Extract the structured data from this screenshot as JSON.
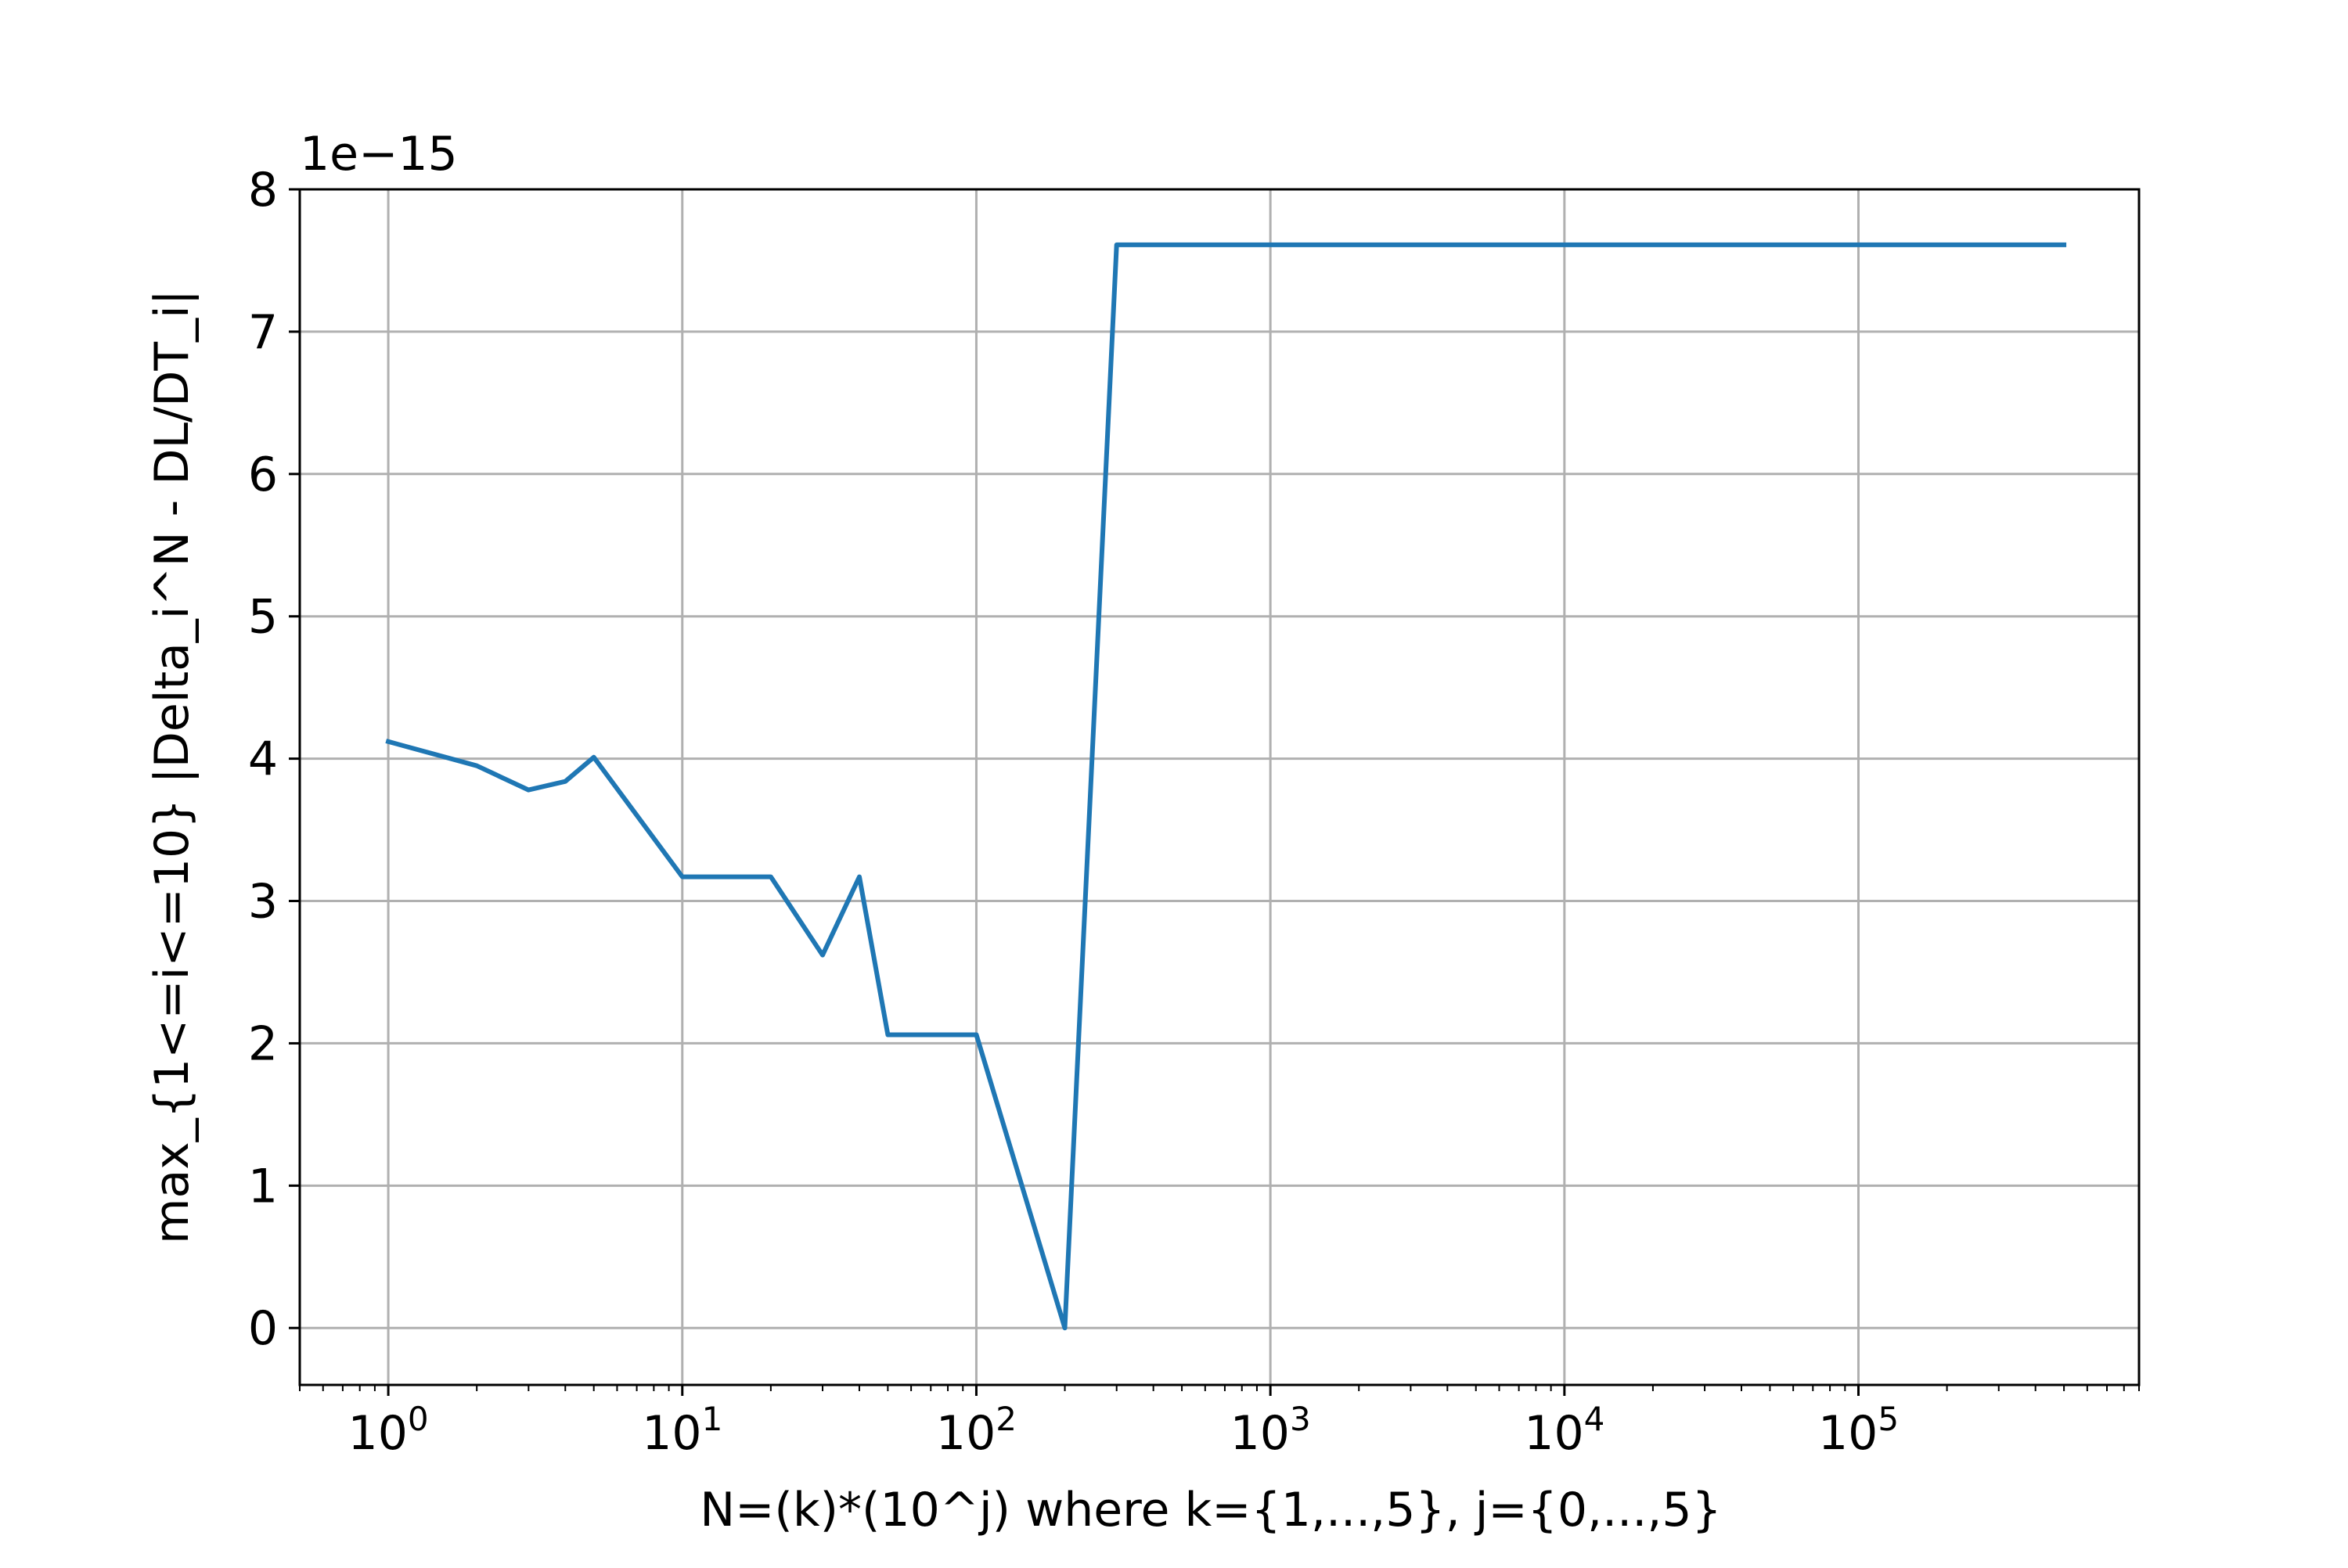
{
  "chart_data": {
    "type": "line",
    "title": "",
    "xlabel": "N=(k)*(10^j) where k={1,...,5}, j={0,...,5}",
    "ylabel": "max_{1<=i<=10} |Delta_i^N - DL/DT_i|",
    "y_offset_label": "1e−15",
    "xscale": "log",
    "xlim": [
      0.5,
      900000
    ],
    "ylim": [
      -0.4,
      8
    ],
    "grid": true,
    "x_ticks": [
      {
        "value": 1,
        "base": "10",
        "exp": "0"
      },
      {
        "value": 10,
        "base": "10",
        "exp": "1"
      },
      {
        "value": 100,
        "base": "10",
        "exp": "2"
      },
      {
        "value": 1000,
        "base": "10",
        "exp": "3"
      },
      {
        "value": 10000,
        "base": "10",
        "exp": "4"
      },
      {
        "value": 100000,
        "base": "10",
        "exp": "5"
      }
    ],
    "y_ticks": [
      {
        "value": 0,
        "label": "0"
      },
      {
        "value": 1,
        "label": "1"
      },
      {
        "value": 2,
        "label": "2"
      },
      {
        "value": 3,
        "label": "3"
      },
      {
        "value": 4,
        "label": "4"
      },
      {
        "value": 5,
        "label": "5"
      },
      {
        "value": 6,
        "label": "6"
      },
      {
        "value": 7,
        "label": "7"
      },
      {
        "value": 8,
        "label": "8"
      }
    ],
    "series": [
      {
        "color": "#1f77b4",
        "x": [
          1,
          2,
          3,
          4,
          5,
          10,
          20,
          30,
          40,
          50,
          100,
          200,
          300,
          400,
          500,
          1000,
          2000,
          3000,
          4000,
          5000,
          10000,
          20000,
          30000,
          40000,
          50000,
          100000,
          200000,
          300000,
          400000,
          500000
        ],
        "y": [
          4.12,
          3.95,
          3.78,
          3.84,
          4.01,
          3.17,
          3.17,
          2.62,
          3.17,
          2.06,
          2.06,
          0.0,
          7.61,
          7.61,
          7.61,
          7.61,
          7.61,
          7.61,
          7.61,
          7.61,
          7.61,
          7.61,
          7.61,
          7.61,
          7.61,
          7.61,
          7.61,
          7.61,
          7.61,
          7.61
        ]
      }
    ]
  }
}
